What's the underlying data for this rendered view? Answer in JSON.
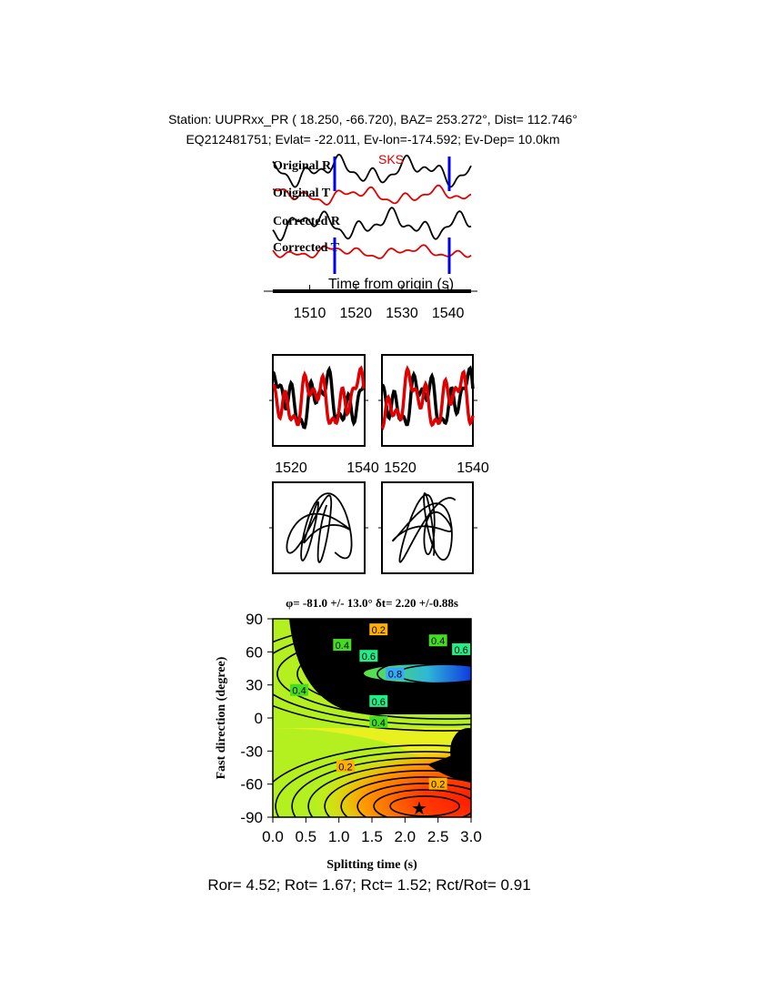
{
  "header": {
    "line1": "Station: UUPRxx_PR (  18.250,  -66.720), BAZ=  253.272°, Dist=  112.746°",
    "line2": "EQ212481751; Evlat= -22.011, Ev-lon=-174.592; Ev-Dep= 10.0km"
  },
  "chart_data": [
    {
      "type": "line",
      "panel": "seismograms",
      "phase_label": "SKS",
      "xlabel": "Time from origin (s)",
      "xticks": [
        "1510",
        "1520",
        "1530",
        "1540"
      ],
      "xlim": [
        1502,
        1545
      ],
      "window": [
        1515,
        1540
      ],
      "traces": [
        {
          "name": "Original R",
          "color": "#000000"
        },
        {
          "name": "Original T",
          "color": "#e00000"
        },
        {
          "name": "Corrected R",
          "color": "#000000"
        },
        {
          "name": "Corrected T",
          "color": "#e00000"
        }
      ],
      "colors": {
        "window": "#0000e0",
        "phase": "#e00000"
      }
    },
    {
      "type": "line",
      "panel": "waveform-overlays",
      "xticks_left": [
        "1520",
        "1540"
      ],
      "xticks_right": [
        "1520",
        "1540"
      ],
      "xlim": [
        1515,
        1540
      ]
    },
    {
      "type": "line",
      "panel": "particle-motion"
    },
    {
      "type": "heatmap",
      "panel": "energy-grid",
      "title": "φ= -81.0 +/- 13.0° δt= 2.20 +/-0.88s",
      "xlabel": "Splitting time (s)",
      "ylabel": "Fast direction (degree)",
      "xlim": [
        0,
        3
      ],
      "ylim": [
        -90,
        90
      ],
      "xticks": [
        "0.0",
        "0.5",
        "1.0",
        "1.5",
        "2.0",
        "2.5",
        "3.0"
      ],
      "yticks": [
        "90",
        "60",
        "30",
        "0",
        "-30",
        "-60",
        "-90"
      ],
      "contour_labels": [
        {
          "text": "0.2",
          "x": 1.6,
          "y": 80
        },
        {
          "text": "0.4",
          "x": 1.05,
          "y": 66
        },
        {
          "text": "0.6",
          "x": 1.45,
          "y": 56
        },
        {
          "text": "0.8",
          "x": 1.85,
          "y": 40
        },
        {
          "text": "0.4",
          "x": 2.5,
          "y": 70
        },
        {
          "text": "0.6",
          "x": 2.85,
          "y": 62
        },
        {
          "text": "0.4",
          "x": 0.4,
          "y": 25
        },
        {
          "text": "0.6",
          "x": 1.6,
          "y": 15
        },
        {
          "text": "0.4",
          "x": 1.6,
          "y": -4
        },
        {
          "text": "0.2",
          "x": 1.1,
          "y": -44
        },
        {
          "text": "0.2",
          "x": 2.5,
          "y": -60
        }
      ],
      "best_fit": {
        "dt": 2.2,
        "phi": -81.0
      }
    }
  ],
  "footer": {
    "ratios": "Ror= 4.52; Rot= 1.67; Rct= 1.52; Rct/Rot= 0.91"
  }
}
